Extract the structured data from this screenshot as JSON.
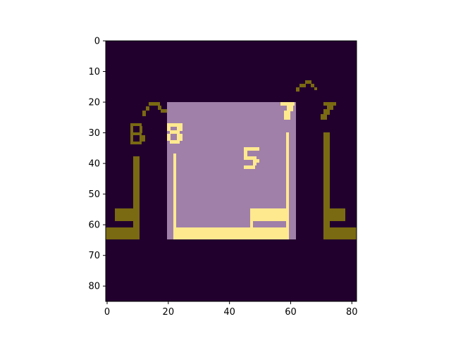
{
  "colors": {
    "background": "#22002e",
    "panel": "#a080a8",
    "bright": "#ffe98f",
    "dim": "#7a6a12",
    "page": "#ffffff",
    "axis": "#000000"
  },
  "axes": {
    "x_ticks": [
      "0",
      "20",
      "40",
      "60",
      "80"
    ],
    "y_ticks": [
      "0",
      "10",
      "20",
      "30",
      "40",
      "50",
      "60",
      "70",
      "80"
    ],
    "x_range": [
      0,
      82
    ],
    "y_range": [
      0,
      85
    ]
  },
  "scene": {
    "description_icons": [
      "left-pillar-icon",
      "right-pillar-icon",
      "left-arch-icon",
      "right-arch-icon",
      "dice-icon"
    ],
    "glyphs": {
      "top_left_glyph": "B",
      "top_right_glyph": "7",
      "inner_left_glyph": "8",
      "inner_right_glyph": "7",
      "center_glyph": "5"
    }
  }
}
